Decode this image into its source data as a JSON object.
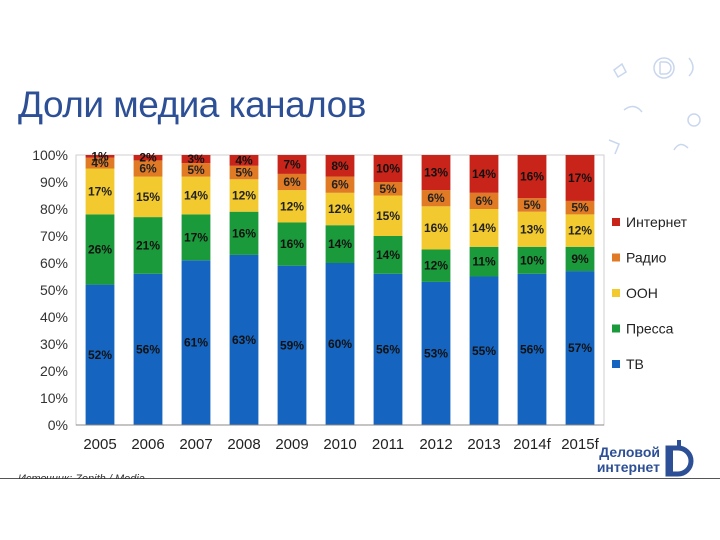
{
  "slide": {
    "title": "Доли медиа каналов",
    "source": "Источник: Zenith / Media",
    "logo": {
      "line1": "Деловой",
      "line2": "интернет"
    }
  },
  "colors": {
    "tv": "#1565c0",
    "press": "#1b9a3c",
    "ooh": "#f2c92e",
    "radio": "#e07a24",
    "internet": "#c9241a",
    "title": "#2d4f96"
  },
  "chart_data": {
    "type": "bar",
    "stacked": true,
    "categories": [
      "2005",
      "2006",
      "2007",
      "2008",
      "2009",
      "2010",
      "2011",
      "2012",
      "2013",
      "2014f",
      "2015f"
    ],
    "ylim": [
      0,
      100
    ],
    "y_ticks": [
      "0%",
      "10%",
      "20%",
      "30%",
      "40%",
      "50%",
      "60%",
      "70%",
      "80%",
      "90%",
      "100%"
    ],
    "legend_position": "right",
    "series": [
      {
        "key": "tv",
        "name": "ТВ",
        "values": [
          52,
          56,
          61,
          63,
          59,
          60,
          56,
          53,
          55,
          56,
          57
        ],
        "labels": [
          "52%",
          "56%",
          "61%",
          "63%",
          "59%",
          "60%",
          "56%",
          "53%",
          "55%",
          "56%",
          "57%"
        ]
      },
      {
        "key": "press",
        "name": "Пресса",
        "values": [
          26,
          21,
          17,
          16,
          16,
          14,
          14,
          12,
          11,
          10,
          9
        ],
        "labels": [
          "26%",
          "21%",
          "17%",
          "16%",
          "16%",
          "14%",
          "14%",
          "12%",
          "11%",
          "10%",
          "9%"
        ]
      },
      {
        "key": "ooh",
        "name": "OOH",
        "values": [
          17,
          15,
          14,
          12,
          12,
          12,
          15,
          16,
          14,
          13,
          12
        ],
        "labels": [
          "17%",
          "15%",
          "14%",
          "12%",
          "12%",
          "12%",
          "15%",
          "16%",
          "14%",
          "13%",
          "12%"
        ]
      },
      {
        "key": "radio",
        "name": "Радио",
        "values": [
          4,
          6,
          5,
          5,
          6,
          6,
          5,
          6,
          6,
          5,
          5
        ],
        "labels": [
          "4%",
          "6%",
          "5%",
          "5%",
          "6%",
          "6%",
          "5%",
          "6%",
          "6%",
          "5%",
          "5%"
        ]
      },
      {
        "key": "internet",
        "name": "Интернет",
        "values": [
          1,
          2,
          3,
          4,
          7,
          8,
          10,
          13,
          14,
          16,
          17
        ],
        "labels": [
          "1%",
          "2%",
          "3%",
          "4%",
          "7%",
          "8%",
          "10%",
          "13%",
          "14%",
          "16%",
          "17%"
        ]
      }
    ],
    "legend_order": [
      "internet",
      "radio",
      "ooh",
      "press",
      "tv"
    ]
  }
}
